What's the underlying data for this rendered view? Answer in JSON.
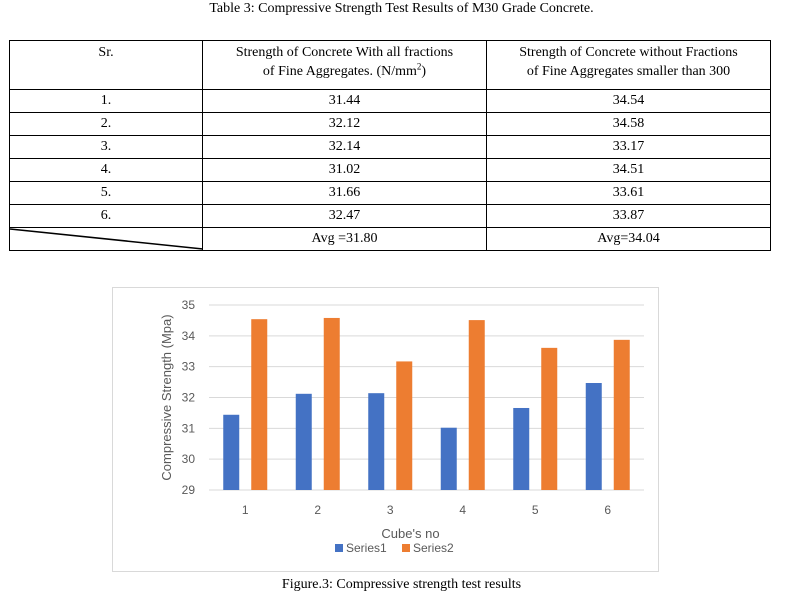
{
  "table": {
    "caption": "Table 3: Compressive Strength Test Results of M30 Grade Concrete.",
    "headers": {
      "sr": "Sr.",
      "col1_line1": "Strength of Concrete With all fractions",
      "col1_line2": "of Fine Aggregates. (N/mm",
      "col1_sup": "2",
      "col1_end": ")",
      "col2_line1": "Strength of Concrete without Fractions",
      "col2_line2": "of Fine Aggregates smaller than 300"
    },
    "rows": [
      {
        "sr": "1.",
        "with_all": "31.44",
        "without": "34.54"
      },
      {
        "sr": "2.",
        "with_all": "32.12",
        "without": "34.58"
      },
      {
        "sr": "3.",
        "with_all": "32.14",
        "without": "33.17"
      },
      {
        "sr": "4.",
        "with_all": "31.02",
        "without": "34.51"
      },
      {
        "sr": "5.",
        "with_all": "31.66",
        "without": "33.61"
      },
      {
        "sr": "6.",
        "with_all": "32.47",
        "without": "33.87"
      }
    ],
    "avg_with_all": "Avg =31.80",
    "avg_without": "Avg=34.04"
  },
  "chart_data": {
    "type": "bar",
    "categories": [
      "1",
      "2",
      "3",
      "4",
      "5",
      "6"
    ],
    "series": [
      {
        "name": "Series1",
        "color": "#4472c4",
        "values": [
          31.44,
          32.12,
          32.14,
          31.02,
          31.66,
          32.47
        ]
      },
      {
        "name": "Series2",
        "color": "#ed7d31",
        "values": [
          34.54,
          34.58,
          33.17,
          34.51,
          33.61,
          33.87
        ]
      }
    ],
    "title": "",
    "xlabel": "Cube's no",
    "ylabel": "Compressive Strength (Mpa)",
    "ylim": [
      29,
      35
    ],
    "yticks": [
      "29",
      "30",
      "31",
      "32",
      "33",
      "34",
      "35"
    ],
    "grid": true,
    "legend": "bottom"
  },
  "figure_caption": "Figure.3: Compressive strength test results"
}
